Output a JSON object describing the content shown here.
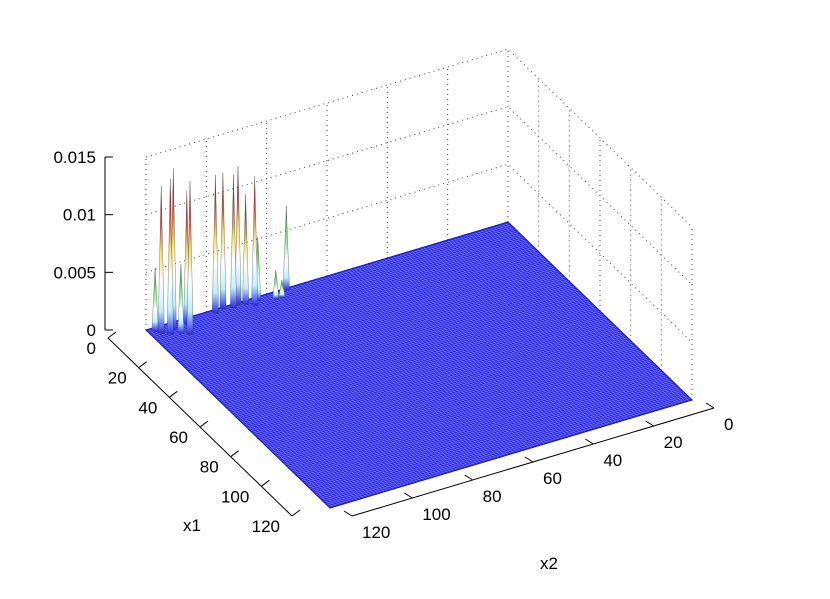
{
  "chart_data": {
    "type": "surface",
    "title": "",
    "xlabel": "x2",
    "ylabel": "x1",
    "zlabel": "",
    "x1_ticks": [
      "0",
      "20",
      "40",
      "60",
      "80",
      "100",
      "120"
    ],
    "x2_ticks": [
      "0",
      "20",
      "40",
      "60",
      "80",
      "100",
      "120"
    ],
    "z_ticks": [
      "0",
      "0.005",
      "0.01",
      "0.015"
    ],
    "x1_range": [
      0,
      120
    ],
    "x2_range": [
      0,
      120
    ],
    "z_range": [
      0,
      0.015
    ],
    "grid": true,
    "surface_color": "#2a2ae6",
    "mesh_line_color": "#ffffff",
    "peaks": [
      {
        "x1": 2,
        "x2": 118,
        "z": 0.0055
      },
      {
        "x1": 4,
        "x2": 117,
        "z": 0.0128
      },
      {
        "x1": 4,
        "x2": 113,
        "z": 0.014
      },
      {
        "x1": 6,
        "x2": 115,
        "z": 0.0135
      },
      {
        "x1": 7,
        "x2": 112,
        "z": 0.006
      },
      {
        "x1": 9,
        "x2": 110,
        "z": 0.0133
      },
      {
        "x1": 3,
        "x2": 108,
        "z": 0.0115
      },
      {
        "x1": 2,
        "x2": 98,
        "z": 0.012
      },
      {
        "x1": 1,
        "x2": 95,
        "z": 0.0118
      },
      {
        "x1": 2,
        "x2": 92,
        "z": 0.0115
      },
      {
        "x1": 1,
        "x2": 90,
        "z": 0.012
      },
      {
        "x1": 2,
        "x2": 88,
        "z": 0.0095
      },
      {
        "x1": 4,
        "x2": 86,
        "z": 0.0112
      },
      {
        "x1": 2,
        "x2": 84,
        "z": 0.0055
      },
      {
        "x1": 1,
        "x2": 74,
        "z": 0.0073
      },
      {
        "x1": 4,
        "x2": 79,
        "z": 0.0025
      },
      {
        "x1": 4,
        "x2": 77,
        "z": 0.0015
      }
    ]
  }
}
